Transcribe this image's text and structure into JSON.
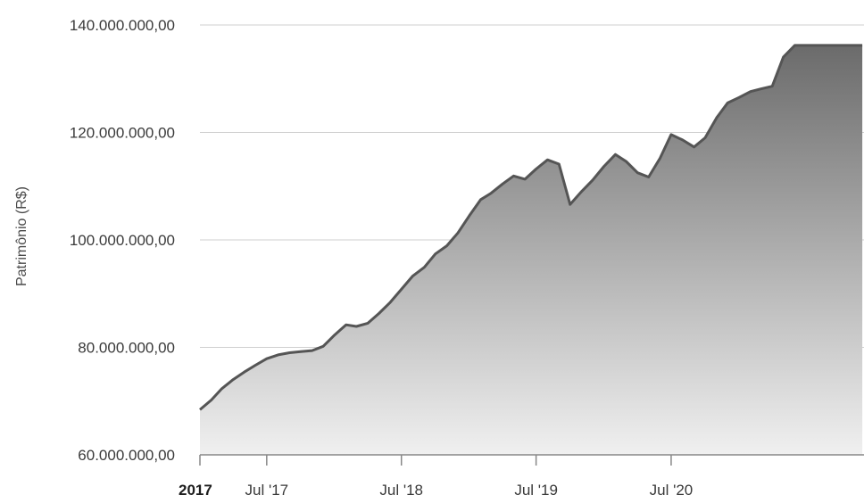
{
  "chart_data": {
    "type": "area",
    "title": "",
    "xlabel": "",
    "ylabel": "Patrimônio (R$)",
    "ylim": [
      60000000,
      140000000
    ],
    "xlim": [
      "2017-01-01",
      "2021-12-31"
    ],
    "grid": true,
    "legend": "none",
    "colors": {
      "line": "#555555",
      "fill_top": "#6b6b6b",
      "fill_bottom": "#f0f0f0",
      "grid": "#cfcfcf",
      "axis": "#888888"
    },
    "y_ticks": [
      {
        "value": 60000000,
        "label": "60.000.000,00"
      },
      {
        "value": 80000000,
        "label": "80.000.000,00"
      },
      {
        "value": 100000000,
        "label": "100.000.000,00"
      },
      {
        "value": 120000000,
        "label": "120.000.000,00"
      },
      {
        "value": 140000000,
        "label": "140.000.000,00"
      }
    ],
    "x_ticks": [
      {
        "date": "2017-01-01",
        "label": "2017",
        "bold": true
      },
      {
        "date": "2017-07-01",
        "label": "Jul '17",
        "bold": false
      },
      {
        "date": "2018-07-01",
        "label": "Jul '18",
        "bold": false
      },
      {
        "date": "2019-07-01",
        "label": "Jul '19",
        "bold": false
      },
      {
        "date": "2020-07-01",
        "label": "Jul '20",
        "bold": false
      }
    ],
    "x": [
      "2017-01-01",
      "2017-02-01",
      "2017-03-01",
      "2017-04-01",
      "2017-05-01",
      "2017-06-01",
      "2017-07-01",
      "2017-08-01",
      "2017-09-01",
      "2017-10-01",
      "2017-11-01",
      "2017-12-01",
      "2018-01-01",
      "2018-02-01",
      "2018-03-01",
      "2018-04-01",
      "2018-05-01",
      "2018-06-01",
      "2018-07-01",
      "2018-08-01",
      "2018-09-01",
      "2018-10-01",
      "2018-11-01",
      "2018-12-01",
      "2019-01-01",
      "2019-02-01",
      "2019-03-01",
      "2019-04-01",
      "2019-05-01",
      "2019-06-01",
      "2019-07-01",
      "2019-08-01",
      "2019-09-01",
      "2019-10-01",
      "2019-11-01",
      "2019-12-01",
      "2020-01-01",
      "2020-02-01",
      "2020-03-01",
      "2020-04-01",
      "2020-05-01",
      "2020-06-01",
      "2020-07-01",
      "2020-08-01",
      "2020-09-01",
      "2020-10-01",
      "2020-11-01",
      "2020-12-01",
      "2021-01-01",
      "2021-02-01",
      "2021-03-01",
      "2021-04-01",
      "2021-05-01",
      "2021-06-01",
      "2021-07-01",
      "2021-08-01",
      "2021-09-01",
      "2021-10-01",
      "2021-11-01",
      "2021-12-01"
    ],
    "series": [
      {
        "values": [
          68400000,
          70200000,
          72300000,
          74000000,
          75400000,
          76700000,
          77900000,
          78600000,
          79000000,
          79200000,
          79400000,
          80200000,
          82300000,
          84200000,
          83900000,
          84500000,
          86300000,
          88400000,
          90800000,
          93300000,
          94900000,
          97400000,
          98900000,
          101300000,
          104500000,
          107500000,
          108700000,
          110400000,
          111900000,
          111300000,
          113200000,
          114900000,
          114100000,
          106600000,
          109000000,
          111100000,
          113700000,
          115900000,
          114600000,
          112500000,
          111700000,
          115200000,
          119600000,
          118600000,
          117300000,
          119000000,
          122700000,
          125500000,
          126500000,
          127600000,
          128100000,
          128600000,
          134000000,
          136200000,
          136200000,
          136200000,
          136200000,
          136200000,
          136200000,
          136200000
        ]
      }
    ]
  }
}
